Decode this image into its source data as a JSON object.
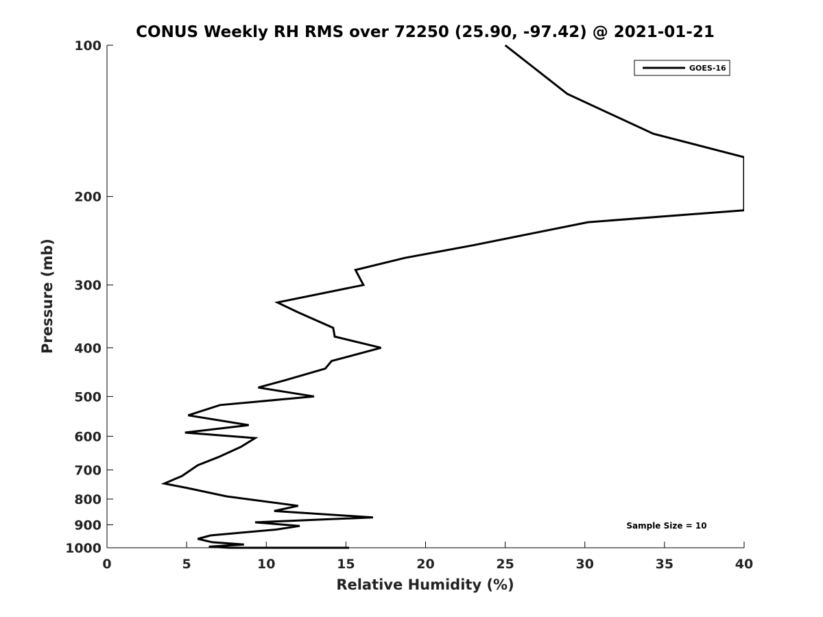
{
  "chart_data": {
    "type": "line",
    "title": "CONUS Weekly RH RMS over 72250 (25.90, -97.42) @ 2021-01-21",
    "xlabel": "Relative Humidity (%)",
    "ylabel": "Pressure (mb)",
    "xlim": [
      0,
      40
    ],
    "ylim": [
      100,
      1000
    ],
    "yscale": "log",
    "y_reversed": true,
    "x_ticks": [
      0,
      5,
      10,
      15,
      20,
      25,
      30,
      35,
      40
    ],
    "y_ticks": [
      100,
      200,
      300,
      400,
      500,
      600,
      700,
      800,
      900,
      1000
    ],
    "grid": false,
    "legend_position": "top-right",
    "annotation": "Sample Size = 10",
    "series": [
      {
        "name": "GOES-16",
        "color": "#000000",
        "points": [
          [
            25.0,
            100
          ],
          [
            28.9,
            125
          ],
          [
            34.3,
            150
          ],
          [
            40.0,
            167
          ],
          [
            40.0,
            213
          ],
          [
            30.2,
            225
          ],
          [
            23.0,
            250
          ],
          [
            18.7,
            265
          ],
          [
            15.6,
            280
          ],
          [
            16.1,
            300
          ],
          [
            10.7,
            325
          ],
          [
            12.0,
            340
          ],
          [
            14.2,
            365
          ],
          [
            14.3,
            380
          ],
          [
            17.2,
            400
          ],
          [
            14.1,
            425
          ],
          [
            13.7,
            440
          ],
          [
            11.1,
            465
          ],
          [
            9.5,
            480
          ],
          [
            13.0,
            500
          ],
          [
            7.1,
            520
          ],
          [
            5.1,
            545
          ],
          [
            8.9,
            570
          ],
          [
            4.9,
            590
          ],
          [
            9.3,
            605
          ],
          [
            8.4,
            630
          ],
          [
            7.0,
            660
          ],
          [
            5.7,
            685
          ],
          [
            4.7,
            720
          ],
          [
            3.6,
            745
          ],
          [
            5.0,
            760
          ],
          [
            7.5,
            790
          ],
          [
            12.0,
            825
          ],
          [
            10.5,
            845
          ],
          [
            16.7,
            870
          ],
          [
            9.3,
            890
          ],
          [
            12.1,
            905
          ],
          [
            10.6,
            920
          ],
          [
            6.5,
            945
          ],
          [
            5.7,
            960
          ],
          [
            6.6,
            975
          ],
          [
            8.6,
            985
          ],
          [
            6.4,
            995
          ],
          [
            7.7,
            1000
          ],
          [
            15.2,
            1000
          ]
        ]
      }
    ]
  }
}
